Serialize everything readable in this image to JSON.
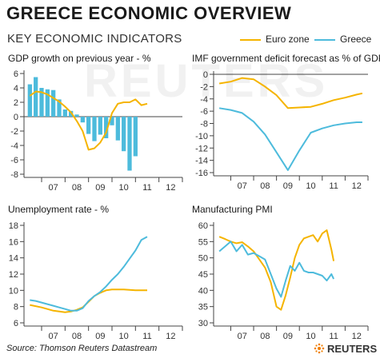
{
  "header": {
    "title": "GREECE ECONOMIC OVERVIEW",
    "subtitle": "KEY ECONOMIC INDICATORS",
    "legend": [
      {
        "label": "Euro zone",
        "color": "#f5b400"
      },
      {
        "label": "Greece",
        "color": "#4dbbdc"
      }
    ]
  },
  "footer": {
    "source": "Source: Thomson Reuters Datastream",
    "logo_text": "REUTERS",
    "logo_icon": "reuters-dot-logo-icon"
  },
  "watermark": "REUTERS",
  "colors": {
    "eurozone": "#f5b400",
    "greece": "#4dbbdc",
    "axis": "#444444",
    "grid": "#bbbbbb"
  },
  "chart_data": [
    {
      "id": "gdp",
      "type": "bar",
      "title": "GDP growth on previous year - %",
      "xlabel": "",
      "ylabel": "",
      "ylim": [
        -8,
        6
      ],
      "yticks": [
        6,
        4,
        2,
        0,
        -2,
        -4,
        -6,
        -8
      ],
      "xlim": [
        2006.25,
        2013.0
      ],
      "xticks": [
        {
          "label": "07",
          "x": 2007.5
        },
        {
          "label": "08",
          "x": 2008.5
        },
        {
          "label": "09",
          "x": 2009.5
        },
        {
          "label": "10",
          "x": 2010.5
        },
        {
          "label": "11",
          "x": 2011.5
        },
        {
          "label": "12",
          "x": 2012.5
        }
      ],
      "gridlines_at": [
        0
      ],
      "bars": {
        "name": "Greece",
        "x": [
          2006.5,
          2006.75,
          2007.0,
          2007.25,
          2007.5,
          2007.75,
          2008.0,
          2008.25,
          2008.5,
          2008.75,
          2009.0,
          2009.25,
          2009.5,
          2009.75,
          2010.0,
          2010.25,
          2010.5,
          2010.75,
          2011.0
        ],
        "values": [
          4.5,
          5.5,
          4.0,
          3.8,
          3.7,
          2.4,
          1.0,
          0.8,
          0.3,
          -0.8,
          -2.4,
          -3.4,
          -2.5,
          -3.0,
          -1.2,
          -3.3,
          -4.8,
          -7.5,
          -5.5
        ]
      },
      "series": [
        {
          "name": "Euro zone",
          "x": [
            2006.5,
            2006.75,
            2007.0,
            2007.25,
            2007.5,
            2007.75,
            2008.0,
            2008.25,
            2008.5,
            2008.75,
            2009.0,
            2009.25,
            2009.5,
            2009.75,
            2010.0,
            2010.25,
            2010.5,
            2010.75,
            2011.0,
            2011.25,
            2011.5
          ],
          "values": [
            2.9,
            3.5,
            3.4,
            3.1,
            2.6,
            2.1,
            1.4,
            0.6,
            -0.6,
            -2.0,
            -4.6,
            -4.4,
            -3.6,
            -2.2,
            0.5,
            1.8,
            2.0,
            2.0,
            2.4,
            1.6,
            1.8
          ]
        }
      ]
    },
    {
      "id": "deficit",
      "type": "line",
      "title": "IMF government deficit forecast as % of GDP",
      "xlabel": "",
      "ylabel": "",
      "ylim": [
        -16,
        0
      ],
      "yticks": [
        0,
        -2,
        -4,
        -6,
        -8,
        -10,
        -12,
        -14,
        -16
      ],
      "xlim": [
        2006.25,
        2013.0
      ],
      "xticks": [
        {
          "label": "07",
          "x": 2007.5
        },
        {
          "label": "08",
          "x": 2008.5
        },
        {
          "label": "09",
          "x": 2009.5
        },
        {
          "label": "10",
          "x": 2010.5
        },
        {
          "label": "11",
          "x": 2011.5
        },
        {
          "label": "12",
          "x": 2012.5
        }
      ],
      "gridlines_at": [
        0
      ],
      "series": [
        {
          "name": "Euro zone",
          "x": [
            2006.5,
            2007.0,
            2007.5,
            2008.0,
            2008.5,
            2009.0,
            2009.5,
            2010.0,
            2010.5,
            2011.0,
            2011.5,
            2012.0,
            2012.5,
            2012.75
          ],
          "values": [
            -1.5,
            -1.2,
            -0.6,
            -0.8,
            -2.0,
            -3.4,
            -5.5,
            -5.4,
            -5.3,
            -4.8,
            -4.2,
            -3.8,
            -3.3,
            -3.1
          ]
        },
        {
          "name": "Greece",
          "x": [
            2006.5,
            2007.0,
            2007.5,
            2008.0,
            2008.5,
            2009.0,
            2009.5,
            2010.0,
            2010.5,
            2011.0,
            2011.5,
            2012.0,
            2012.5,
            2012.75
          ],
          "values": [
            -5.5,
            -5.8,
            -6.3,
            -7.7,
            -9.8,
            -12.7,
            -15.6,
            -12.4,
            -9.5,
            -8.8,
            -8.3,
            -8.0,
            -7.8,
            -7.8
          ]
        }
      ]
    },
    {
      "id": "unemployment",
      "type": "line",
      "title": "Unemployment rate - %",
      "xlabel": "",
      "ylabel": "",
      "ylim": [
        6,
        18
      ],
      "yticks": [
        18,
        16,
        14,
        12,
        10,
        8,
        6
      ],
      "xlim": [
        2006.25,
        2013.0
      ],
      "xticks": [
        {
          "label": "07",
          "x": 2007.5
        },
        {
          "label": "08",
          "x": 2008.5
        },
        {
          "label": "09",
          "x": 2009.5
        },
        {
          "label": "10",
          "x": 2010.5
        },
        {
          "label": "11",
          "x": 2011.5
        },
        {
          "label": "12",
          "x": 2012.5
        }
      ],
      "gridlines_at": [],
      "series": [
        {
          "name": "Euro zone",
          "x": [
            2006.5,
            2007.0,
            2007.5,
            2007.75,
            2008.0,
            2008.25,
            2008.5,
            2008.75,
            2009.0,
            2009.25,
            2009.5,
            2009.75,
            2010.0,
            2010.5,
            2011.0,
            2011.5
          ],
          "values": [
            8.2,
            7.9,
            7.5,
            7.4,
            7.3,
            7.4,
            7.6,
            7.9,
            8.6,
            9.3,
            9.7,
            10.0,
            10.1,
            10.1,
            10.0,
            10.0
          ]
        },
        {
          "name": "Greece",
          "x": [
            2006.5,
            2006.75,
            2007.0,
            2007.25,
            2007.5,
            2007.75,
            2008.0,
            2008.25,
            2008.5,
            2008.75,
            2009.0,
            2009.25,
            2009.5,
            2009.75,
            2010.0,
            2010.25,
            2010.5,
            2010.75,
            2011.0,
            2011.25,
            2011.5
          ],
          "values": [
            8.8,
            8.7,
            8.5,
            8.3,
            8.1,
            7.9,
            7.7,
            7.5,
            7.5,
            7.8,
            8.7,
            9.3,
            9.8,
            10.5,
            11.3,
            12.0,
            12.9,
            13.9,
            14.9,
            16.2,
            16.6
          ]
        }
      ]
    },
    {
      "id": "pmi",
      "type": "line",
      "title": "Manufacturing PMI",
      "xlabel": "",
      "ylabel": "",
      "ylim": [
        30,
        60
      ],
      "yticks": [
        60,
        55,
        50,
        45,
        40,
        35,
        30
      ],
      "xlim": [
        2006.25,
        2013.0
      ],
      "xticks": [
        {
          "label": "07",
          "x": 2007.5
        },
        {
          "label": "08",
          "x": 2008.5
        },
        {
          "label": "09",
          "x": 2009.5
        },
        {
          "label": "10",
          "x": 2010.5
        },
        {
          "label": "11",
          "x": 2011.5
        },
        {
          "label": "12",
          "x": 2012.5
        }
      ],
      "gridlines_at": [],
      "series": [
        {
          "name": "Euro zone",
          "x": [
            2006.5,
            2006.75,
            2007.0,
            2007.25,
            2007.5,
            2007.75,
            2008.0,
            2008.25,
            2008.5,
            2008.75,
            2009.0,
            2009.2,
            2009.4,
            2009.6,
            2009.8,
            2010.0,
            2010.2,
            2010.4,
            2010.6,
            2010.8,
            2011.0,
            2011.2,
            2011.4,
            2011.5
          ],
          "values": [
            56.5,
            55.8,
            55.0,
            54.5,
            54.8,
            53.5,
            52.0,
            49.5,
            47.0,
            42.5,
            35.0,
            34.0,
            38.5,
            44.0,
            50.0,
            54.0,
            56.0,
            56.5,
            57.0,
            55.0,
            57.5,
            58.5,
            52.5,
            49.0
          ]
        },
        {
          "name": "Greece",
          "x": [
            2006.5,
            2006.75,
            2007.0,
            2007.25,
            2007.5,
            2007.75,
            2008.0,
            2008.25,
            2008.5,
            2008.75,
            2009.0,
            2009.2,
            2009.4,
            2009.6,
            2009.8,
            2010.0,
            2010.2,
            2010.4,
            2010.6,
            2010.8,
            2011.0,
            2011.2,
            2011.4,
            2011.5
          ],
          "values": [
            52.0,
            53.5,
            55.0,
            52.0,
            54.0,
            51.0,
            51.5,
            50.5,
            49.5,
            45.0,
            40.5,
            38.0,
            43.0,
            47.5,
            46.0,
            48.5,
            46.0,
            45.5,
            45.5,
            45.0,
            44.5,
            43.0,
            45.0,
            43.5
          ]
        }
      ]
    }
  ]
}
